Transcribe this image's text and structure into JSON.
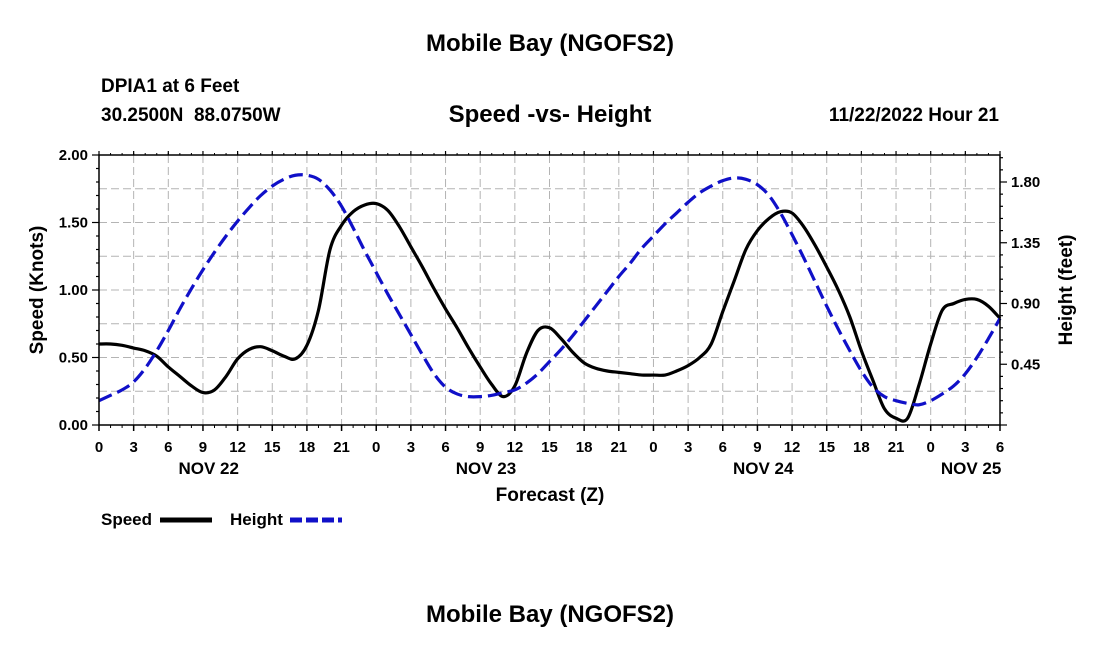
{
  "page": {
    "title": "Mobile Bay (NGOFS2)",
    "footer_title": "Mobile Bay (NGOFS2)",
    "station": "DPIA1 at 6 Feet",
    "coords": "30.2500N  88.0750W",
    "subtitle": "Speed -vs- Height",
    "datetime": "11/22/2022 Hour 21"
  },
  "legend": {
    "speed_label": "Speed",
    "height_label": "Height"
  },
  "colors": {
    "speed": "#000000",
    "height": "#1010c8",
    "grid": "#b4b4b4"
  },
  "chart_data": {
    "type": "line",
    "title": "Speed -vs- Height",
    "xlabel": "Forecast (Z)",
    "ylabel": "Speed (Knots)",
    "y2label": "Height (feet)",
    "xlim": [
      0,
      78
    ],
    "ylim": [
      0,
      2.0
    ],
    "y2lim": [
      0,
      2.0
    ],
    "x_ticks": [
      0,
      3,
      6,
      9,
      12,
      15,
      18,
      21,
      24,
      27,
      30,
      33,
      36,
      39,
      42,
      45,
      48,
      51,
      54,
      57,
      60,
      63,
      66,
      69,
      72,
      75,
      78
    ],
    "x_tick_labels": [
      "0",
      "3",
      "6",
      "9",
      "12",
      "15",
      "18",
      "21",
      "0",
      "3",
      "6",
      "9",
      "12",
      "15",
      "18",
      "21",
      "0",
      "3",
      "6",
      "9",
      "12",
      "15",
      "18",
      "21",
      "0",
      "3",
      "6"
    ],
    "day_labels": [
      {
        "x": 9.5,
        "label": "NOV 22"
      },
      {
        "x": 33.5,
        "label": "NOV 23"
      },
      {
        "x": 57.5,
        "label": "NOV 24"
      },
      {
        "x": 75.5,
        "label": "NOV 25"
      }
    ],
    "y_ticks": [
      0,
      0.5,
      1.0,
      1.5,
      2.0
    ],
    "y_tick_labels": [
      "0.00",
      "0.50",
      "1.00",
      "1.50",
      "2.00"
    ],
    "y2_ticks": [
      0.45,
      0.9,
      1.35,
      1.8
    ],
    "y2_tick_labels": [
      "0.45",
      "0.90",
      "1.35",
      "1.80"
    ],
    "series": [
      {
        "name": "Speed",
        "axis": "left",
        "style": "solid",
        "x": [
          0,
          1,
          2,
          3,
          4,
          5,
          6,
          7,
          8,
          9,
          10,
          11,
          12,
          13,
          14,
          15,
          16,
          17,
          18,
          19,
          20,
          21,
          22,
          23,
          24,
          25,
          26,
          27,
          28,
          29,
          30,
          31,
          32,
          33,
          34,
          35,
          36,
          37,
          38,
          39,
          40,
          41,
          42,
          43,
          44,
          45,
          46,
          47,
          48,
          49,
          50,
          51,
          52,
          53,
          54,
          55,
          56,
          57,
          58,
          59,
          60,
          61,
          62,
          63,
          64,
          65,
          66,
          67,
          68,
          69,
          70,
          71,
          72,
          73,
          74,
          75,
          76,
          77,
          78
        ],
        "values": [
          0.6,
          0.6,
          0.59,
          0.57,
          0.55,
          0.51,
          0.43,
          0.36,
          0.29,
          0.24,
          0.26,
          0.36,
          0.49,
          0.56,
          0.58,
          0.55,
          0.51,
          0.49,
          0.59,
          0.85,
          1.3,
          1.48,
          1.58,
          1.63,
          1.64,
          1.59,
          1.47,
          1.32,
          1.17,
          1.01,
          0.86,
          0.72,
          0.57,
          0.43,
          0.3,
          0.21,
          0.29,
          0.53,
          0.7,
          0.72,
          0.64,
          0.54,
          0.46,
          0.42,
          0.4,
          0.39,
          0.38,
          0.37,
          0.37,
          0.37,
          0.4,
          0.44,
          0.5,
          0.6,
          0.84,
          1.07,
          1.3,
          1.44,
          1.53,
          1.58,
          1.57,
          1.47,
          1.33,
          1.17,
          1.0,
          0.8,
          0.55,
          0.33,
          0.12,
          0.05,
          0.05,
          0.3,
          0.6,
          0.85,
          0.9,
          0.93,
          0.93,
          0.88,
          0.79
        ]
      },
      {
        "name": "Height",
        "axis": "right",
        "style": "dashed",
        "x": [
          0,
          1,
          2,
          3,
          4,
          5,
          6,
          7,
          8,
          9,
          10,
          11,
          12,
          13,
          14,
          15,
          16,
          17,
          18,
          19,
          20,
          21,
          22,
          23,
          24,
          25,
          26,
          27,
          28,
          29,
          30,
          31,
          32,
          33,
          34,
          35,
          36,
          37,
          38,
          39,
          40,
          41,
          42,
          43,
          44,
          45,
          46,
          47,
          48,
          49,
          50,
          51,
          52,
          53,
          54,
          55,
          56,
          57,
          58,
          59,
          60,
          61,
          62,
          63,
          64,
          65,
          66,
          67,
          68,
          69,
          70,
          71,
          72,
          73,
          74,
          75,
          76,
          77,
          78
        ],
        "values": [
          0.18,
          0.22,
          0.26,
          0.32,
          0.42,
          0.55,
          0.7,
          0.86,
          1.01,
          1.15,
          1.28,
          1.4,
          1.51,
          1.61,
          1.7,
          1.77,
          1.82,
          1.85,
          1.85,
          1.82,
          1.74,
          1.62,
          1.46,
          1.29,
          1.13,
          0.97,
          0.82,
          0.67,
          0.52,
          0.38,
          0.28,
          0.23,
          0.21,
          0.21,
          0.22,
          0.24,
          0.26,
          0.31,
          0.38,
          0.47,
          0.56,
          0.66,
          0.77,
          0.88,
          0.99,
          1.1,
          1.2,
          1.31,
          1.4,
          1.49,
          1.57,
          1.65,
          1.72,
          1.77,
          1.81,
          1.83,
          1.82,
          1.78,
          1.7,
          1.57,
          1.41,
          1.24,
          1.06,
          0.88,
          0.71,
          0.55,
          0.4,
          0.28,
          0.21,
          0.18,
          0.16,
          0.15,
          0.18,
          0.23,
          0.29,
          0.38,
          0.5,
          0.64,
          0.79
        ]
      }
    ]
  }
}
